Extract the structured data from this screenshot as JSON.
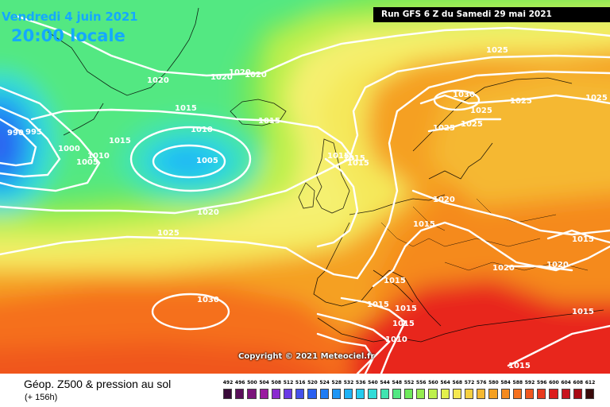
{
  "header": {
    "date": "Vendredi 4 juin 2021",
    "local_time": "20:00 locale",
    "run_info": "Run GFS 6 Z du Samedi 29 mai 2021"
  },
  "map": {
    "variable_title": "Géop. Z500 & pression au sol",
    "lead_time": "(+ 156h)",
    "copyright": "Copyright © 2021 Meteociel.fr",
    "isobar_labels": [
      "1020",
      "1020",
      "1020",
      "1020",
      "1015",
      "1015",
      "1015",
      "1010",
      "1010",
      "1005",
      "1005",
      "1000",
      "995",
      "990",
      "1015",
      "1015",
      "1015",
      "1030",
      "1025",
      "1025",
      "1025",
      "1025",
      "1025",
      "1025",
      "1020",
      "1015",
      "1020",
      "1020",
      "1015",
      "1015",
      "1015",
      "1015",
      "1015",
      "1015",
      "1010",
      "1015",
      "1025",
      "1020",
      "1030"
    ],
    "colors": {
      "deep_low": "#2246e8",
      "low": "#3cc8f0",
      "green": "#6ee85a",
      "yellow": "#f5f05a",
      "orange": "#f5a020",
      "red": "#e8281e",
      "isobar": "#ffffff",
      "coast": "#000000"
    }
  },
  "legend": {
    "values": [
      "492",
      "496",
      "500",
      "504",
      "508",
      "512",
      "516",
      "520",
      "524",
      "528",
      "532",
      "536",
      "540",
      "544",
      "548",
      "552",
      "556",
      "560",
      "564",
      "568",
      "572",
      "576",
      "580",
      "584",
      "588",
      "592",
      "596",
      "600",
      "604",
      "608",
      "612"
    ],
    "colors": [
      "#3a0a3a",
      "#5a0f5a",
      "#7a147a",
      "#9a1aa0",
      "#8a2ad0",
      "#6a3ae6",
      "#4450ea",
      "#2a60f0",
      "#1e7cf5",
      "#1e96f5",
      "#1eb2f5",
      "#24ccf0",
      "#30dcd8",
      "#40e4b0",
      "#52e882",
      "#6eea5a",
      "#96ec50",
      "#bef04c",
      "#e2f04c",
      "#f5e850",
      "#f5d040",
      "#f5b832",
      "#f5a020",
      "#f58a1e",
      "#f5701e",
      "#f0561e",
      "#e83a1e",
      "#dc1e1e",
      "#c8141e",
      "#a80a14",
      "#3a0a0a"
    ]
  }
}
